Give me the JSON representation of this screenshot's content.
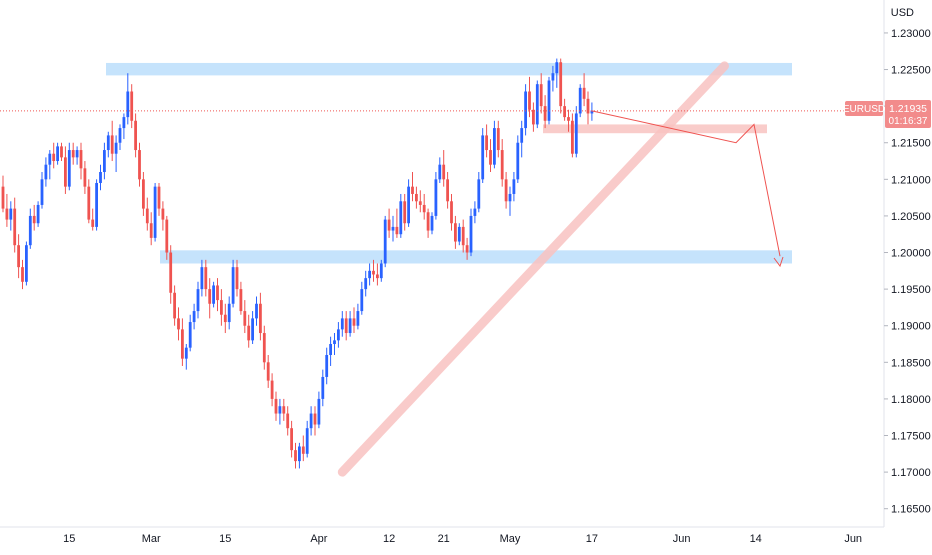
{
  "chart_data": {
    "type": "candlestick",
    "symbol": "EURUSD",
    "currency": "USD",
    "last_price": "1.21935",
    "countdown": "01:16:37",
    "ylim": [
      1.1625,
      1.2345
    ],
    "y_ticks": [
      "1.23000",
      "1.22500",
      "1.22000",
      "1.21500",
      "1.21000",
      "1.20500",
      "1.20000",
      "1.19500",
      "1.19000",
      "1.18500",
      "1.18000",
      "1.17500",
      "1.17000",
      "1.16500"
    ],
    "x_ticks": [
      "15",
      "Mar",
      "15",
      "Apr",
      "12",
      "21",
      "May",
      "17",
      "Jun",
      "14",
      "Jun"
    ],
    "x_tick_index": [
      17,
      38,
      57,
      81,
      99,
      113,
      130,
      151,
      174,
      193,
      218
    ],
    "bars": [
      [
        1.209,
        1.2105,
        1.2055,
        1.206
      ],
      [
        1.206,
        1.208,
        1.2035,
        1.2045
      ],
      [
        1.2045,
        1.207,
        1.203,
        1.206
      ],
      [
        1.206,
        1.2075,
        1.2,
        1.201
      ],
      [
        1.201,
        1.2025,
        1.1965,
        1.198
      ],
      [
        1.198,
        1.199,
        1.195,
        1.196
      ],
      [
        1.196,
        1.2015,
        1.1955,
        1.201
      ],
      [
        1.201,
        1.206,
        1.2005,
        1.205
      ],
      [
        1.205,
        1.2065,
        1.203,
        1.204
      ],
      [
        1.204,
        1.207,
        1.2035,
        1.2065
      ],
      [
        1.2065,
        1.211,
        1.206,
        1.21
      ],
      [
        1.21,
        1.213,
        1.209,
        1.212
      ],
      [
        1.212,
        1.214,
        1.21,
        1.2135
      ],
      [
        1.2135,
        1.215,
        1.2115,
        1.2125
      ],
      [
        1.2125,
        1.215,
        1.212,
        1.2145
      ],
      [
        1.2145,
        1.215,
        1.2125,
        1.213
      ],
      [
        1.213,
        1.2145,
        1.208,
        1.209
      ],
      [
        1.209,
        1.215,
        1.2085,
        1.214
      ],
      [
        1.214,
        1.215,
        1.212,
        1.213
      ],
      [
        1.213,
        1.2145,
        1.212,
        1.214
      ],
      [
        1.214,
        1.215,
        1.21,
        1.2115
      ],
      [
        1.2115,
        1.2125,
        1.208,
        1.209
      ],
      [
        1.209,
        1.21,
        1.204,
        1.2045
      ],
      [
        1.2045,
        1.206,
        1.203,
        1.2035
      ],
      [
        1.2035,
        1.21,
        1.203,
        1.2095
      ],
      [
        1.2095,
        1.212,
        1.2085,
        1.211
      ],
      [
        1.211,
        1.215,
        1.21,
        1.214
      ],
      [
        1.214,
        1.2165,
        1.213,
        1.216
      ],
      [
        1.216,
        1.218,
        1.2125,
        1.2135
      ],
      [
        1.2135,
        1.216,
        1.211,
        1.215
      ],
      [
        1.215,
        1.2175,
        1.214,
        1.217
      ],
      [
        1.217,
        1.219,
        1.2155,
        1.2185
      ],
      [
        1.2185,
        1.2245,
        1.2175,
        1.222
      ],
      [
        1.222,
        1.223,
        1.217,
        1.218
      ],
      [
        1.218,
        1.219,
        1.213,
        1.214
      ],
      [
        1.214,
        1.215,
        1.209,
        1.21
      ],
      [
        1.21,
        1.211,
        1.205,
        1.206
      ],
      [
        1.206,
        1.2075,
        1.203,
        1.204
      ],
      [
        1.204,
        1.2055,
        1.201,
        1.202
      ],
      [
        1.202,
        1.2095,
        1.2015,
        1.209
      ],
      [
        1.209,
        1.2095,
        1.205,
        1.206
      ],
      [
        1.206,
        1.207,
        1.203,
        1.2045
      ],
      [
        1.2045,
        1.205,
        1.199,
        1.2
      ],
      [
        1.2,
        1.201,
        1.193,
        1.1945
      ],
      [
        1.1945,
        1.1955,
        1.19,
        1.191
      ],
      [
        1.191,
        1.1925,
        1.188,
        1.1895
      ],
      [
        1.1895,
        1.191,
        1.1845,
        1.1855
      ],
      [
        1.1855,
        1.1875,
        1.184,
        1.187
      ],
      [
        1.187,
        1.1915,
        1.1865,
        1.1905
      ],
      [
        1.1905,
        1.193,
        1.1895,
        1.192
      ],
      [
        1.192,
        1.196,
        1.191,
        1.195
      ],
      [
        1.195,
        1.199,
        1.194,
        1.198
      ],
      [
        1.198,
        1.199,
        1.194,
        1.195
      ],
      [
        1.195,
        1.1965,
        1.191,
        1.193
      ],
      [
        1.193,
        1.196,
        1.1925,
        1.1955
      ],
      [
        1.1955,
        1.1965,
        1.192,
        1.1935
      ],
      [
        1.1935,
        1.195,
        1.19,
        1.1915
      ],
      [
        1.1915,
        1.193,
        1.189,
        1.1905
      ],
      [
        1.1905,
        1.194,
        1.1895,
        1.193
      ],
      [
        1.193,
        1.199,
        1.1925,
        1.198
      ],
      [
        1.198,
        1.199,
        1.194,
        1.195
      ],
      [
        1.195,
        1.196,
        1.1915,
        1.192
      ],
      [
        1.192,
        1.1935,
        1.189,
        1.19
      ],
      [
        1.19,
        1.1915,
        1.187,
        1.188
      ],
      [
        1.188,
        1.192,
        1.1875,
        1.191
      ],
      [
        1.191,
        1.194,
        1.19,
        1.193
      ],
      [
        1.193,
        1.1945,
        1.188,
        1.189
      ],
      [
        1.189,
        1.19,
        1.184,
        1.185
      ],
      [
        1.185,
        1.186,
        1.1815,
        1.1825
      ],
      [
        1.1825,
        1.1835,
        1.179,
        1.18
      ],
      [
        1.18,
        1.181,
        1.177,
        1.178
      ],
      [
        1.178,
        1.18,
        1.1765,
        1.179
      ],
      [
        1.179,
        1.18,
        1.177,
        1.178
      ],
      [
        1.178,
        1.179,
        1.175,
        1.176
      ],
      [
        1.176,
        1.177,
        1.172,
        1.173
      ],
      [
        1.173,
        1.174,
        1.1705,
        1.1715
      ],
      [
        1.1715,
        1.174,
        1.1705,
        1.1735
      ],
      [
        1.1735,
        1.175,
        1.1715,
        1.1725
      ],
      [
        1.1725,
        1.177,
        1.172,
        1.176
      ],
      [
        1.176,
        1.179,
        1.175,
        1.178
      ],
      [
        1.178,
        1.179,
        1.175,
        1.1765
      ],
      [
        1.1765,
        1.181,
        1.176,
        1.18
      ],
      [
        1.18,
        1.184,
        1.179,
        1.183
      ],
      [
        1.183,
        1.187,
        1.182,
        1.186
      ],
      [
        1.186,
        1.1885,
        1.1845,
        1.1875
      ],
      [
        1.1875,
        1.189,
        1.186,
        1.188
      ],
      [
        1.188,
        1.1905,
        1.187,
        1.1895
      ],
      [
        1.1895,
        1.192,
        1.1885,
        1.191
      ],
      [
        1.191,
        1.192,
        1.188,
        1.189
      ],
      [
        1.189,
        1.192,
        1.1885,
        1.191
      ],
      [
        1.191,
        1.1925,
        1.189,
        1.19
      ],
      [
        1.19,
        1.193,
        1.1895,
        1.192
      ],
      [
        1.192,
        1.196,
        1.1915,
        1.195
      ],
      [
        1.195,
        1.1975,
        1.194,
        1.1965
      ],
      [
        1.1965,
        1.1985,
        1.1955,
        1.1975
      ],
      [
        1.1975,
        1.199,
        1.196,
        1.197
      ],
      [
        1.197,
        1.1985,
        1.1955,
        1.1965
      ],
      [
        1.1965,
        1.199,
        1.196,
        1.1985
      ],
      [
        1.1985,
        1.205,
        1.198,
        1.2045
      ],
      [
        1.2045,
        1.206,
        1.202,
        1.203
      ],
      [
        1.203,
        1.205,
        1.2015,
        1.2035
      ],
      [
        1.2035,
        1.206,
        1.202,
        1.2025
      ],
      [
        1.2025,
        1.208,
        1.202,
        1.207
      ],
      [
        1.207,
        1.208,
        1.203,
        1.204
      ],
      [
        1.204,
        1.21,
        1.2035,
        1.209
      ],
      [
        1.209,
        1.211,
        1.207,
        1.208
      ],
      [
        1.208,
        1.209,
        1.206,
        1.207
      ],
      [
        1.207,
        1.2085,
        1.2055,
        1.2065
      ],
      [
        1.2065,
        1.208,
        1.2045,
        1.2055
      ],
      [
        1.2055,
        1.206,
        1.202,
        1.203
      ],
      [
        1.203,
        1.2055,
        1.2025,
        1.205
      ],
      [
        1.205,
        1.211,
        1.2045,
        1.21
      ],
      [
        1.21,
        1.213,
        1.2095,
        1.212
      ],
      [
        1.212,
        1.214,
        1.209,
        1.21
      ],
      [
        1.21,
        1.211,
        1.206,
        1.207
      ],
      [
        1.207,
        1.208,
        1.203,
        1.204
      ],
      [
        1.204,
        1.205,
        1.2005,
        1.2015
      ],
      [
        1.2015,
        1.204,
        1.201,
        1.2035
      ],
      [
        1.2035,
        1.2045,
        1.2,
        1.201
      ],
      [
        1.201,
        1.202,
        1.199,
        1.2
      ],
      [
        1.2,
        1.206,
        1.1995,
        1.205
      ],
      [
        1.205,
        1.207,
        1.204,
        1.206
      ],
      [
        1.206,
        1.211,
        1.2055,
        1.21
      ],
      [
        1.21,
        1.217,
        1.2095,
        1.216
      ],
      [
        1.216,
        1.2175,
        1.213,
        1.214
      ],
      [
        1.214,
        1.2155,
        1.211,
        1.212
      ],
      [
        1.212,
        1.218,
        1.2115,
        1.217
      ],
      [
        1.217,
        1.218,
        1.213,
        1.214
      ],
      [
        1.214,
        1.2155,
        1.209,
        1.21
      ],
      [
        1.21,
        1.211,
        1.206,
        1.207
      ],
      [
        1.207,
        1.209,
        1.205,
        1.208
      ],
      [
        1.208,
        1.211,
        1.207,
        1.21
      ],
      [
        1.21,
        1.216,
        1.2095,
        1.215
      ],
      [
        1.215,
        1.218,
        1.213,
        1.217
      ],
      [
        1.217,
        1.223,
        1.216,
        1.222
      ],
      [
        1.222,
        1.224,
        1.2185,
        1.2195
      ],
      [
        1.2195,
        1.2205,
        1.2165,
        1.2175
      ],
      [
        1.2175,
        1.2235,
        1.217,
        1.223
      ],
      [
        1.223,
        1.2245,
        1.219,
        1.22
      ],
      [
        1.22,
        1.2215,
        1.217,
        1.218
      ],
      [
        1.218,
        1.224,
        1.2175,
        1.2235
      ],
      [
        1.2235,
        1.2255,
        1.222,
        1.2245
      ],
      [
        1.2245,
        1.2265,
        1.2225,
        1.226
      ],
      [
        1.226,
        1.2265,
        1.219,
        1.22
      ],
      [
        1.22,
        1.221,
        1.218,
        1.2185
      ],
      [
        1.2185,
        1.2195,
        1.2165,
        1.218
      ],
      [
        1.218,
        1.219,
        1.213,
        1.2135
      ],
      [
        1.2135,
        1.22,
        1.213,
        1.219
      ],
      [
        1.219,
        1.223,
        1.2185,
        1.2225
      ],
      [
        1.2225,
        1.2245,
        1.22,
        1.221
      ],
      [
        1.221,
        1.222,
        1.2175,
        1.219
      ],
      [
        1.219,
        1.2205,
        1.218,
        1.2194
      ]
    ],
    "colors": {
      "up": "#2962ff",
      "down": "#ef5350",
      "zone": "#bbdefb",
      "trendline": "#f9c3c1",
      "price_line": "#ef5350",
      "label_bg": "#f28b8b"
    }
  }
}
